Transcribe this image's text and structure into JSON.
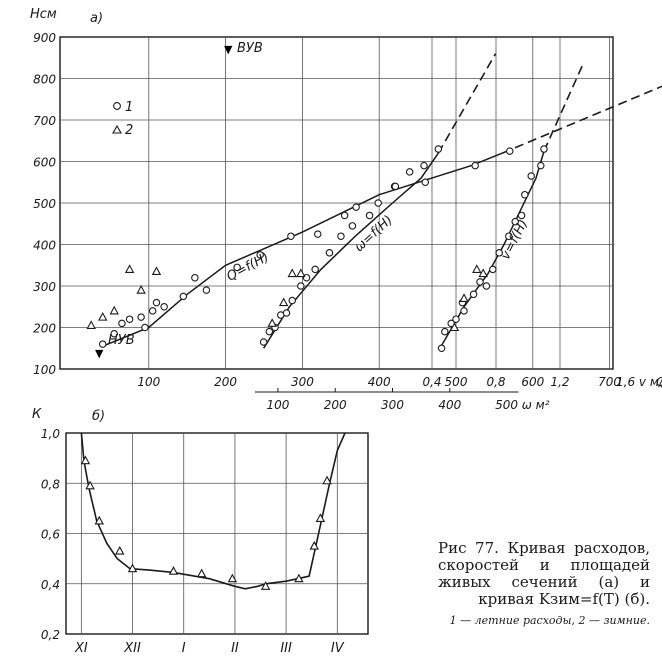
{
  "figure": {
    "caption": "Рис 77. Кривая расходов, скоростей и площадей живых сечений (а) и кривая Kзим=f(T) (б).",
    "legend_note": "1 — летние расходы, 2 — зимние."
  },
  "chart_data": [
    {
      "type": "scatter",
      "panel_label": "а)",
      "ylabel": "Нсм",
      "ylim": [
        100,
        900
      ],
      "yticks": [
        "100",
        "200",
        "300",
        "400",
        "500",
        "600",
        "700",
        "800",
        "900"
      ],
      "legend": [
        {
          "marker": "circle",
          "label": "1"
        },
        {
          "marker": "triangle",
          "label": "2"
        }
      ],
      "annotations": {
        "nuv": "НУВ",
        "vuv": "ВУВ"
      },
      "axes": {
        "Q": {
          "label": "Qм³/с",
          "ticks": [
            "100",
            "200",
            "300",
            "400",
            "500",
            "600",
            "700"
          ],
          "range": [
            0,
            750
          ]
        },
        "v": {
          "label": "1,6 v м/с",
          "ticks": [
            "0,4",
            "0,8",
            "1,2"
          ],
          "range": [
            0.2,
            1.7
          ]
        },
        "w": {
          "label": "500 ω м²",
          "ticks": [
            "100",
            "200",
            "300",
            "400"
          ],
          "range": [
            60,
            540
          ]
        }
      },
      "series": [
        {
          "name": "Q=f(H)",
          "x_axis": "Q",
          "fit": [
            [
              40,
              155
            ],
            [
              100,
              200
            ],
            [
              150,
              280
            ],
            [
              200,
              350
            ],
            [
              300,
              430
            ],
            [
              400,
              520
            ],
            [
              520,
              590
            ],
            [
              560,
              620
            ]
          ],
          "extrapolation": [
            [
              560,
              620
            ],
            [
              870,
              860
            ]
          ],
          "summer": [
            [
              40,
              160
            ],
            [
              55,
              185
            ],
            [
              65,
              210
            ],
            [
              75,
              220
            ],
            [
              90,
              225
            ],
            [
              95,
              200
            ],
            [
              105,
              240
            ],
            [
              110,
              260
            ],
            [
              120,
              250
            ],
            [
              145,
              275
            ],
            [
              160,
              320
            ],
            [
              175,
              290
            ],
            [
              215,
              345
            ],
            [
              245,
              375
            ],
            [
              285,
              420
            ],
            [
              320,
              425
            ],
            [
              355,
              470
            ],
            [
              370,
              490
            ],
            [
              420,
              540
            ],
            [
              460,
              550
            ],
            [
              525,
              590
            ],
            [
              570,
              625
            ]
          ],
          "winter": [
            [
              25,
              205
            ],
            [
              40,
              225
            ],
            [
              55,
              240
            ],
            [
              75,
              340
            ],
            [
              90,
              290
            ],
            [
              110,
              335
            ]
          ]
        },
        {
          "name": "v=f(H)",
          "x_axis": "v",
          "fit": [
            [
              0.45,
              150
            ],
            [
              0.6,
              250
            ],
            [
              0.75,
              330
            ],
            [
              0.85,
              400
            ],
            [
              0.95,
              480
            ],
            [
              1.05,
              560
            ],
            [
              1.1,
              625
            ]
          ],
          "extrapolation": [
            [
              1.1,
              625
            ],
            [
              1.35,
              840
            ]
          ],
          "summer": [
            [
              0.46,
              150
            ],
            [
              0.48,
              190
            ],
            [
              0.52,
              210
            ],
            [
              0.55,
              220
            ],
            [
              0.59,
              260
            ],
            [
              0.6,
              240
            ],
            [
              0.66,
              280
            ],
            [
              0.7,
              310
            ],
            [
              0.74,
              300
            ],
            [
              0.78,
              340
            ],
            [
              0.82,
              380
            ],
            [
              0.88,
              420
            ],
            [
              0.92,
              455
            ],
            [
              0.96,
              470
            ],
            [
              0.98,
              520
            ],
            [
              1.02,
              565
            ],
            [
              1.08,
              590
            ],
            [
              1.1,
              630
            ]
          ],
          "winter": [
            [
              0.54,
              200
            ],
            [
              0.6,
              270
            ],
            [
              0.68,
              340
            ],
            [
              0.72,
              330
            ]
          ]
        },
        {
          "name": "ω=f(H)",
          "x_axis": "w",
          "fit": [
            [
              75,
              150
            ],
            [
              120,
              250
            ],
            [
              175,
              340
            ],
            [
              235,
              420
            ],
            [
              300,
              500
            ],
            [
              350,
              560
            ],
            [
              380,
              620
            ]
          ],
          "extrapolation": [
            [
              380,
              620
            ],
            [
              480,
              860
            ]
          ],
          "summer": [
            [
              75,
              165
            ],
            [
              85,
              190
            ],
            [
              95,
              200
            ],
            [
              105,
              230
            ],
            [
              115,
              235
            ],
            [
              125,
              265
            ],
            [
              140,
              300
            ],
            [
              150,
              320
            ],
            [
              165,
              340
            ],
            [
              190,
              380
            ],
            [
              210,
              420
            ],
            [
              230,
              445
            ],
            [
              260,
              470
            ],
            [
              275,
              500
            ],
            [
              305,
              540
            ],
            [
              330,
              575
            ],
            [
              355,
              590
            ],
            [
              380,
              630
            ]
          ],
          "winter": [
            [
              90,
              210
            ],
            [
              110,
              260
            ],
            [
              125,
              330
            ],
            [
              140,
              330
            ]
          ]
        }
      ]
    },
    {
      "type": "line",
      "panel_label": "б)",
      "ylabel": "К",
      "ylim": [
        0.2,
        1.0
      ],
      "yticks": [
        "0,2",
        "0,4",
        "0,6",
        "0,8",
        "1,0"
      ],
      "categories": [
        "XI",
        "XII",
        "I",
        "II",
        "III",
        "IV"
      ],
      "x_range": [
        -0.3,
        5.6
      ],
      "series": [
        {
          "name": "Kзим=f(T)",
          "x": [
            0.0,
            0.05,
            0.15,
            0.3,
            0.5,
            0.7,
            0.95,
            1.3,
            1.8,
            2.5,
            3.0,
            3.2,
            3.45,
            3.6,
            4.0,
            4.45,
            4.58,
            4.7,
            4.85,
            5.0,
            5.15
          ],
          "y": [
            1.0,
            0.89,
            0.78,
            0.65,
            0.56,
            0.5,
            0.46,
            0.455,
            0.445,
            0.42,
            0.39,
            0.38,
            0.39,
            0.4,
            0.41,
            0.43,
            0.55,
            0.66,
            0.8,
            0.93,
            1.0
          ],
          "markers": [
            [
              0.08,
              0.89
            ],
            [
              0.17,
              0.79
            ],
            [
              0.35,
              0.65
            ],
            [
              0.75,
              0.53
            ],
            [
              1.0,
              0.46
            ],
            [
              1.8,
              0.45
            ],
            [
              2.35,
              0.44
            ],
            [
              2.95,
              0.42
            ],
            [
              3.6,
              0.39
            ],
            [
              4.25,
              0.42
            ],
            [
              4.55,
              0.55
            ],
            [
              4.67,
              0.66
            ],
            [
              4.8,
              0.81
            ]
          ]
        }
      ]
    }
  ]
}
